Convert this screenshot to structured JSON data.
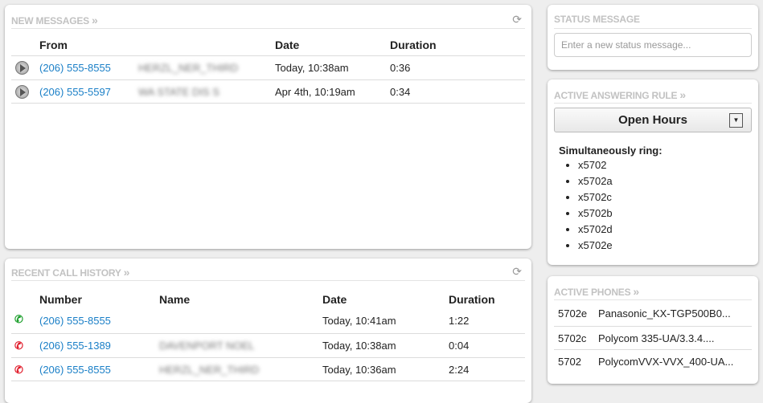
{
  "new_messages": {
    "title": "NEW MESSAGES",
    "chevron": "»",
    "refresh_icon": "refresh-icon",
    "headers": {
      "from": "From",
      "date": "Date",
      "duration": "Duration"
    },
    "rows": [
      {
        "number": "(206) 555-8555",
        "name": "HERZL_NER_THIRD",
        "date": "Today, 10:38am",
        "duration": "0:36"
      },
      {
        "number": "(206) 555-5597",
        "name": "WA STATE DIS S",
        "date": "Apr 4th, 10:19am",
        "duration": "0:34"
      }
    ]
  },
  "call_history": {
    "title": "RECENT CALL HISTORY",
    "chevron": "»",
    "headers": {
      "number": "Number",
      "name": "Name",
      "date": "Date",
      "duration": "Duration"
    },
    "rows": [
      {
        "type": "outgoing",
        "icon": "↗",
        "color": "#1a9e2a",
        "number": "(206) 555-8555",
        "name": "",
        "date": "Today, 10:41am",
        "duration": "1:22"
      },
      {
        "type": "missed",
        "icon": "✖",
        "color": "#e01b2a",
        "number": "(206) 555-1389",
        "name": "DAVENPORT NOEL",
        "date": "Today, 10:38am",
        "duration": "0:04"
      },
      {
        "type": "missed",
        "icon": "✖",
        "color": "#e01b2a",
        "number": "(206) 555-8555",
        "name": "HERZL_NER_THIRD",
        "date": "Today, 10:36am",
        "duration": "2:24"
      }
    ]
  },
  "status": {
    "title": "STATUS MESSAGE",
    "placeholder": "Enter a new status message..."
  },
  "answering": {
    "title": "ACTIVE ANSWERING RULE",
    "chevron": "»",
    "selected": "Open Hours",
    "ring_label": "Simultaneously ring:",
    "ring": [
      "x5702",
      "x5702a",
      "x5702c",
      "x5702b",
      "x5702d",
      "x5702e"
    ]
  },
  "phones": {
    "title": "ACTIVE PHONES",
    "chevron": "»",
    "rows": [
      {
        "ext": "5702e",
        "device": "Panasonic_KX-TGP500B0..."
      },
      {
        "ext": "5702c",
        "device": "Polycom 335-UA/3.3.4...."
      },
      {
        "ext": "5702",
        "device": "PolycomVVX-VVX_400-UA..."
      }
    ]
  }
}
